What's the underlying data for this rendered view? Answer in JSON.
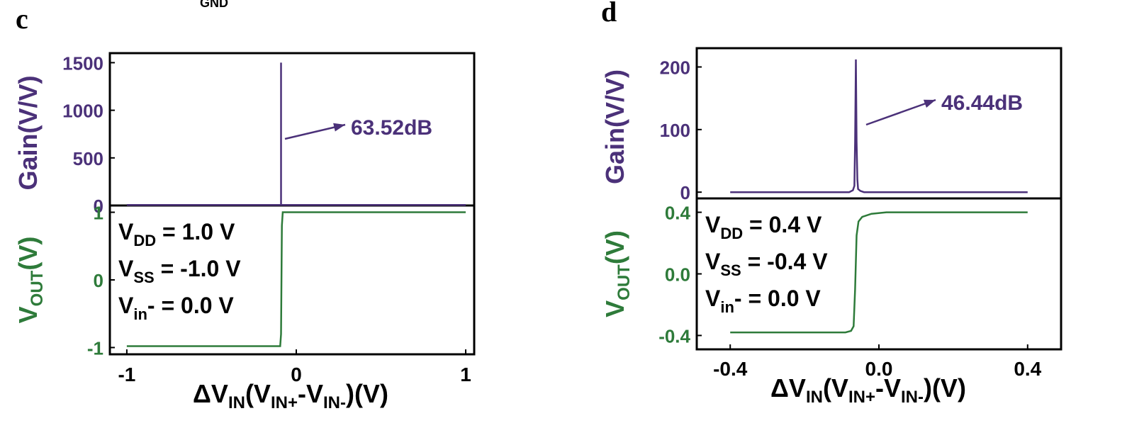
{
  "top_fragment": {
    "text": "GND"
  },
  "colors": {
    "gain": "#4b3179",
    "vout": "#2e7b3a",
    "axis": "#000000"
  },
  "chart_data": [
    {
      "panel": "c",
      "type": "line",
      "gain_plot": {
        "ylabel": "Gain(V/V)",
        "ylim": [
          0,
          1600
        ],
        "ytick_labels": [
          "0",
          "500",
          "1000",
          "1500"
        ],
        "ytick_values": [
          0,
          500,
          1000,
          1500
        ],
        "xlim": [
          -1.1,
          1.05
        ],
        "series": [
          {
            "x": [
              -1.0,
              -0.09,
              -0.09,
              -0.09,
              -0.09,
              1.0
            ],
            "y": [
              5,
              5,
              1500,
              1500,
              5,
              5
            ]
          }
        ],
        "annotation": {
          "text": "63.52dB",
          "peak_x": -0.09,
          "peak_y": 1500
        }
      },
      "vout_plot": {
        "ylabel": "VOUT(V)",
        "ylim": [
          -1.1,
          1.1
        ],
        "ytick_labels": [
          "-1",
          "0",
          "1"
        ],
        "ytick_values": [
          -1,
          0,
          1
        ],
        "series": [
          {
            "x": [
              -1.0,
              -0.095,
              -0.09,
              -0.085,
              -0.08,
              1.0
            ],
            "y": [
              -0.98,
              -0.98,
              -0.8,
              0.8,
              1.0,
              1.0
            ]
          }
        ],
        "conditions": [
          {
            "main": "V",
            "sub": "DD",
            "rest": " = 1.0 V"
          },
          {
            "main": "V",
            "sub": "SS",
            "rest": " = -1.0 V"
          },
          {
            "main": "V",
            "sub": "in",
            "rest": "- = 0.0 V"
          }
        ]
      },
      "xtick_labels": [
        "-1",
        "0",
        "1"
      ],
      "xtick_values": [
        -1,
        0,
        1
      ],
      "xlabel": {
        "main": "ΔV",
        "sub": "IN",
        "mid": "(V",
        "sub2": "IN+",
        "dash": "-V",
        "sub3": "IN-",
        "end": ")(V)"
      }
    },
    {
      "panel": "d",
      "type": "line",
      "gain_plot": {
        "ylabel": "Gain(V/V)",
        "ylim": [
          -10,
          230
        ],
        "ytick_labels": [
          "0",
          "100",
          "200"
        ],
        "ytick_values": [
          0,
          100,
          200
        ],
        "xlim": [
          -0.49,
          0.49
        ],
        "series": [
          {
            "x": [
              -0.4,
              -0.08,
              -0.07,
              -0.066,
              -0.064,
              -0.062,
              -0.06,
              -0.058,
              -0.056,
              -0.05,
              -0.04,
              0.4
            ],
            "y": [
              0,
              0,
              3,
              10,
              80,
              212,
              80,
              20,
              5,
              2,
              0,
              0
            ]
          }
        ],
        "annotation": {
          "text": "46.44dB",
          "peak_x": -0.062,
          "peak_y": 212
        }
      },
      "vout_plot": {
        "ylabel": "VOUT(V)",
        "ylim": [
          -0.49,
          0.49
        ],
        "ytick_labels": [
          "-0.4",
          "0.0",
          "0.4"
        ],
        "ytick_values": [
          -0.4,
          0.0,
          0.4
        ],
        "series": [
          {
            "x": [
              -0.4,
              -0.09,
              -0.075,
              -0.068,
              -0.064,
              -0.06,
              -0.055,
              -0.045,
              -0.02,
              0.02,
              0.4
            ],
            "y": [
              -0.38,
              -0.38,
              -0.37,
              -0.34,
              -0.1,
              0.25,
              0.34,
              0.37,
              0.39,
              0.4,
              0.4
            ]
          }
        ],
        "conditions": [
          {
            "main": "V",
            "sub": "DD",
            "rest": " = 0.4 V"
          },
          {
            "main": "V",
            "sub": "SS",
            "rest": " = -0.4 V"
          },
          {
            "main": "V",
            "sub": "in",
            "rest": "- = 0.0 V"
          }
        ]
      },
      "xtick_labels": [
        "-0.4",
        "0.0",
        "0.4"
      ],
      "xtick_values": [
        -0.4,
        0.0,
        0.4
      ],
      "xlabel": {
        "main": "ΔV",
        "sub": "IN",
        "mid": "(V",
        "sub2": "IN+",
        "dash": "-V",
        "sub3": "IN-",
        "end": ")(V)"
      }
    }
  ]
}
